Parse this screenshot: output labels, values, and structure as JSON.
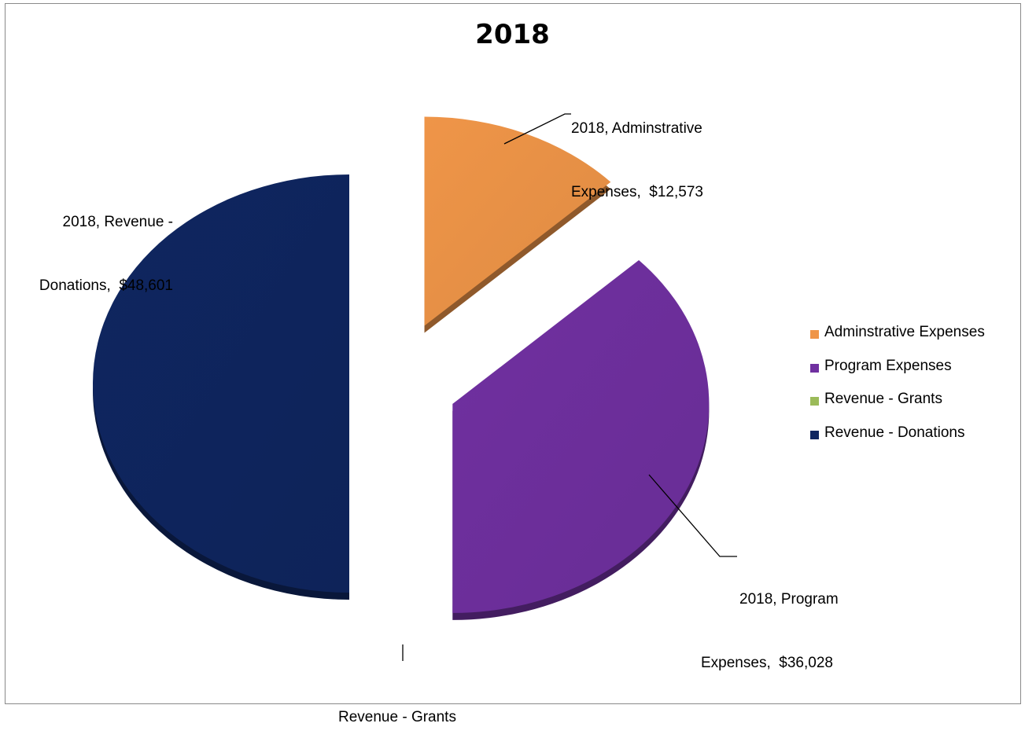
{
  "chart_data": {
    "type": "pie",
    "title": "2018",
    "categories": [
      "Adminstrative Expenses",
      "Program Expenses",
      "Revenue - Grants",
      "Revenue - Donations"
    ],
    "values": [
      12573,
      36028,
      0,
      48601
    ],
    "colors": [
      "#ef9548",
      "#7030a0",
      "#9bbb59",
      "#0f2660"
    ],
    "data_labels": [
      {
        "line1": "2018, Adminstrative",
        "line2": "Expenses,  $12,573"
      },
      {
        "line1": "2018, Program",
        "line2": "Expenses,  $36,028"
      },
      {
        "line1": "Revenue - Grants",
        "line2": ""
      },
      {
        "line1": "2018, Revenue -",
        "line2": "Donations,  $48,601"
      }
    ],
    "legend": {
      "position": "right",
      "items": [
        "Adminstrative Expenses",
        "Program Expenses",
        "Revenue - Grants",
        "Revenue - Donations"
      ]
    },
    "exploded": true,
    "style": "3d"
  }
}
